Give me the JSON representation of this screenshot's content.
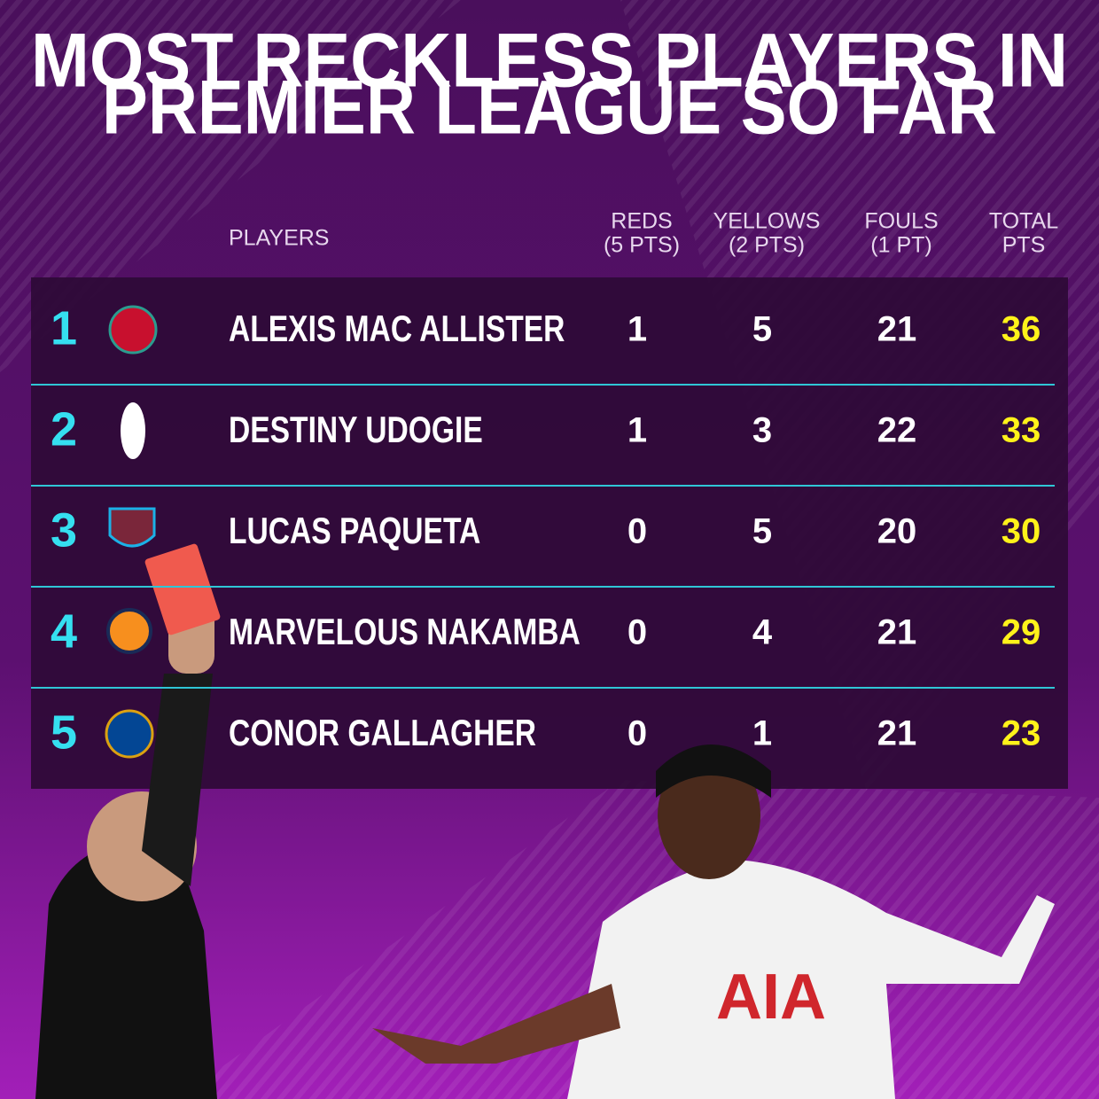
{
  "title_lines": [
    "MOST RECKLESS PLAYERS IN",
    "PREMIER LEAGUE SO FAR"
  ],
  "table": {
    "header": {
      "player": "PLAYERS",
      "reds": [
        "REDS",
        "(5 PTS)"
      ],
      "yellows": [
        "YELLOWS",
        "(2 PTS)"
      ],
      "fouls": [
        "FOULS",
        "(1 PT)"
      ],
      "total": [
        "TOTAL",
        "PTS"
      ]
    },
    "rows": [
      {
        "rank": "1",
        "player": "ALEXIS MAC ALLISTER",
        "reds": "1",
        "yellows": "5",
        "fouls": "21",
        "total": "36"
      },
      {
        "rank": "2",
        "player": "DESTINY UDOGIE",
        "reds": "1",
        "yellows": "3",
        "fouls": "22",
        "total": "33"
      },
      {
        "rank": "3",
        "player": "LUCAS PAQUETA",
        "reds": "0",
        "yellows": "5",
        "fouls": "20",
        "total": "30"
      },
      {
        "rank": "4",
        "player": "MARVELOUS NAKAMBA",
        "reds": "0",
        "yellows": "4",
        "fouls": "21",
        "total": "29"
      },
      {
        "rank": "5",
        "player": "CONOR GALLAGHER",
        "reds": "0",
        "yellows": "1",
        "fouls": "21",
        "total": "23"
      }
    ]
  }
}
